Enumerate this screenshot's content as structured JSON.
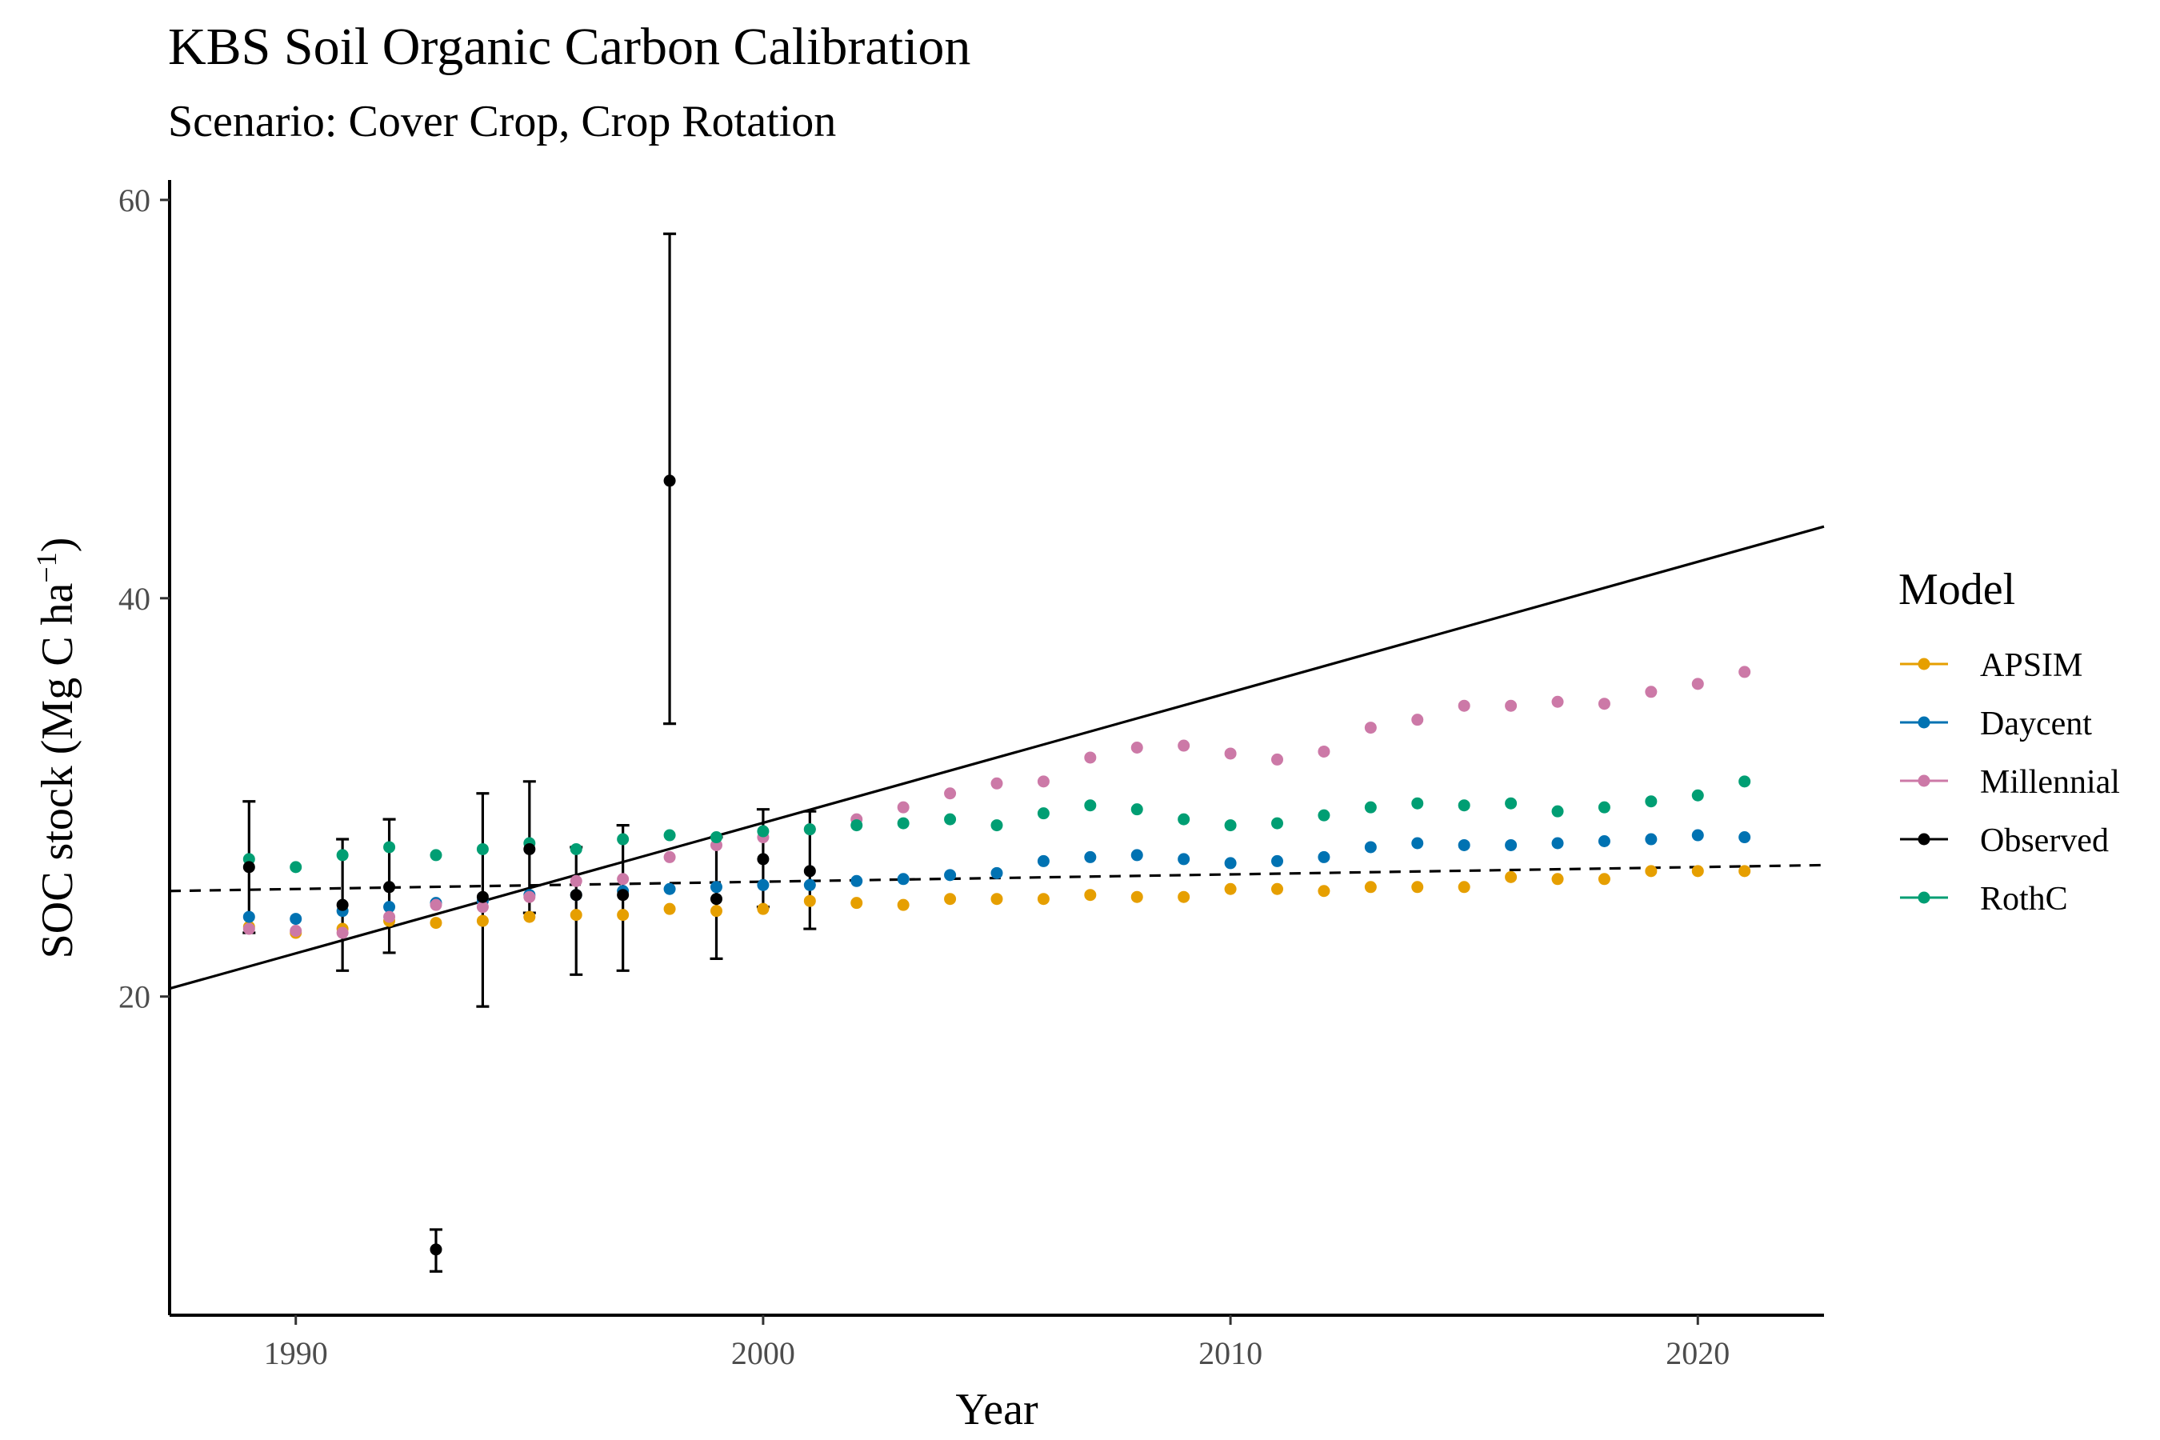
{
  "chart_data": {
    "type": "scatter",
    "title": "KBS Soil Organic Carbon Calibration",
    "subtitle": "Scenario: Cover Crop, Crop Rotation",
    "xlabel": "Year",
    "ylabel_main": "SOC stock (Mg C ha",
    "ylabel_sup": "−1",
    "ylabel_close": ")",
    "xlim": [
      1987.3,
      2022.7
    ],
    "ylim": [
      4,
      61
    ],
    "xticks": [
      1990,
      2000,
      2010,
      2020
    ],
    "yticks": [
      20,
      40,
      60
    ],
    "grid": false,
    "legend": {
      "title": "Model",
      "position": "right",
      "items": [
        "APSIM",
        "Daycent",
        "Millennial",
        "Observed",
        "RothC"
      ]
    },
    "colors": {
      "APSIM": "#E69F00",
      "Daycent": "#0072B2",
      "Millennial": "#CC79A7",
      "Observed": "#000000",
      "RothC": "#009E73"
    },
    "series": [
      {
        "name": "APSIM",
        "x": [
          1989,
          1990,
          1991,
          1992,
          1993,
          1994,
          1995,
          1996,
          1997,
          1998,
          1999,
          2000,
          2001,
          2002,
          2003,
          2004,
          2005,
          2006,
          2007,
          2008,
          2009,
          2010,
          2011,
          2012,
          2013,
          2014,
          2015,
          2016,
          2017,
          2018,
          2019,
          2020,
          2021
        ],
        "y": [
          23.5,
          23.2,
          23.4,
          23.8,
          23.7,
          23.8,
          24.0,
          24.1,
          24.1,
          24.4,
          24.3,
          24.4,
          24.8,
          24.7,
          24.6,
          24.9,
          24.9,
          24.9,
          25.1,
          25.0,
          25.0,
          25.4,
          25.4,
          25.3,
          25.5,
          25.5,
          25.5,
          26.0,
          25.9,
          25.9,
          26.3,
          26.3,
          26.3
        ]
      },
      {
        "name": "Daycent",
        "x": [
          1989,
          1990,
          1991,
          1992,
          1993,
          1994,
          1995,
          1996,
          1997,
          1998,
          1999,
          2000,
          2001,
          2002,
          2003,
          2004,
          2005,
          2006,
          2007,
          2008,
          2009,
          2010,
          2011,
          2012,
          2013,
          2014,
          2015,
          2016,
          2017,
          2018,
          2019,
          2020,
          2021
        ],
        "y": [
          24.0,
          23.9,
          24.3,
          24.5,
          24.7,
          24.8,
          25.1,
          25.1,
          25.3,
          25.4,
          25.5,
          25.6,
          25.6,
          25.8,
          25.9,
          26.1,
          26.2,
          26.8,
          27.0,
          27.1,
          26.9,
          26.7,
          26.8,
          27.0,
          27.5,
          27.7,
          27.6,
          27.6,
          27.7,
          27.8,
          27.9,
          28.1,
          28.0
        ]
      },
      {
        "name": "Millennial",
        "x": [
          1989,
          1990,
          1991,
          1992,
          1993,
          1994,
          1995,
          1996,
          1997,
          1998,
          1999,
          2000,
          2001,
          2002,
          2003,
          2004,
          2005,
          2006,
          2007,
          2008,
          2009,
          2010,
          2011,
          2012,
          2013,
          2014,
          2015,
          2016,
          2017,
          2018,
          2019,
          2020,
          2021
        ],
        "y": [
          23.4,
          23.3,
          23.2,
          24.0,
          24.6,
          24.5,
          25.0,
          25.8,
          25.9,
          27.0,
          27.6,
          28.0,
          28.4,
          28.9,
          29.5,
          30.2,
          30.7,
          30.8,
          32.0,
          32.5,
          32.6,
          32.2,
          31.9,
          32.3,
          33.5,
          33.9,
          34.6,
          34.6,
          34.8,
          34.7,
          35.3,
          35.7,
          36.3
        ]
      },
      {
        "name": "RothC",
        "x": [
          1989,
          1990,
          1991,
          1992,
          1993,
          1994,
          1995,
          1996,
          1997,
          1998,
          1999,
          2000,
          2001,
          2002,
          2003,
          2004,
          2005,
          2006,
          2007,
          2008,
          2009,
          2010,
          2011,
          2012,
          2013,
          2014,
          2015,
          2016,
          2017,
          2018,
          2019,
          2020,
          2021
        ],
        "y": [
          26.9,
          26.5,
          27.1,
          27.5,
          27.1,
          27.4,
          27.7,
          27.4,
          27.9,
          28.1,
          28.0,
          28.3,
          28.4,
          28.6,
          28.7,
          28.9,
          28.6,
          29.2,
          29.6,
          29.4,
          28.9,
          28.6,
          28.7,
          29.1,
          29.5,
          29.7,
          29.6,
          29.7,
          29.3,
          29.5,
          29.8,
          30.1,
          30.8
        ]
      },
      {
        "name": "Observed",
        "x": [
          1989,
          1991,
          1992,
          1993,
          1994,
          1995,
          1996,
          1997,
          1998,
          1999,
          2000,
          2001
        ],
        "y": [
          26.5,
          24.6,
          25.5,
          7.3,
          25.0,
          27.4,
          25.1,
          25.1,
          45.9,
          24.9,
          26.9,
          26.3
        ],
        "ymin": [
          23.2,
          21.3,
          22.2,
          6.2,
          19.5,
          24.2,
          21.1,
          21.3,
          33.7,
          21.9,
          24.5,
          23.4
        ],
        "ymax": [
          29.8,
          27.9,
          28.9,
          8.3,
          30.2,
          30.8,
          27.5,
          28.6,
          58.3,
          28.0,
          29.4,
          29.3
        ]
      }
    ],
    "reference_lines": [
      {
        "style": "solid",
        "x": [
          1987.3,
          2022.7
        ],
        "y": [
          20.4,
          43.6
        ]
      },
      {
        "style": "dashed",
        "x": [
          1987.3,
          2022.7
        ],
        "y": [
          25.3,
          26.6
        ]
      }
    ]
  }
}
